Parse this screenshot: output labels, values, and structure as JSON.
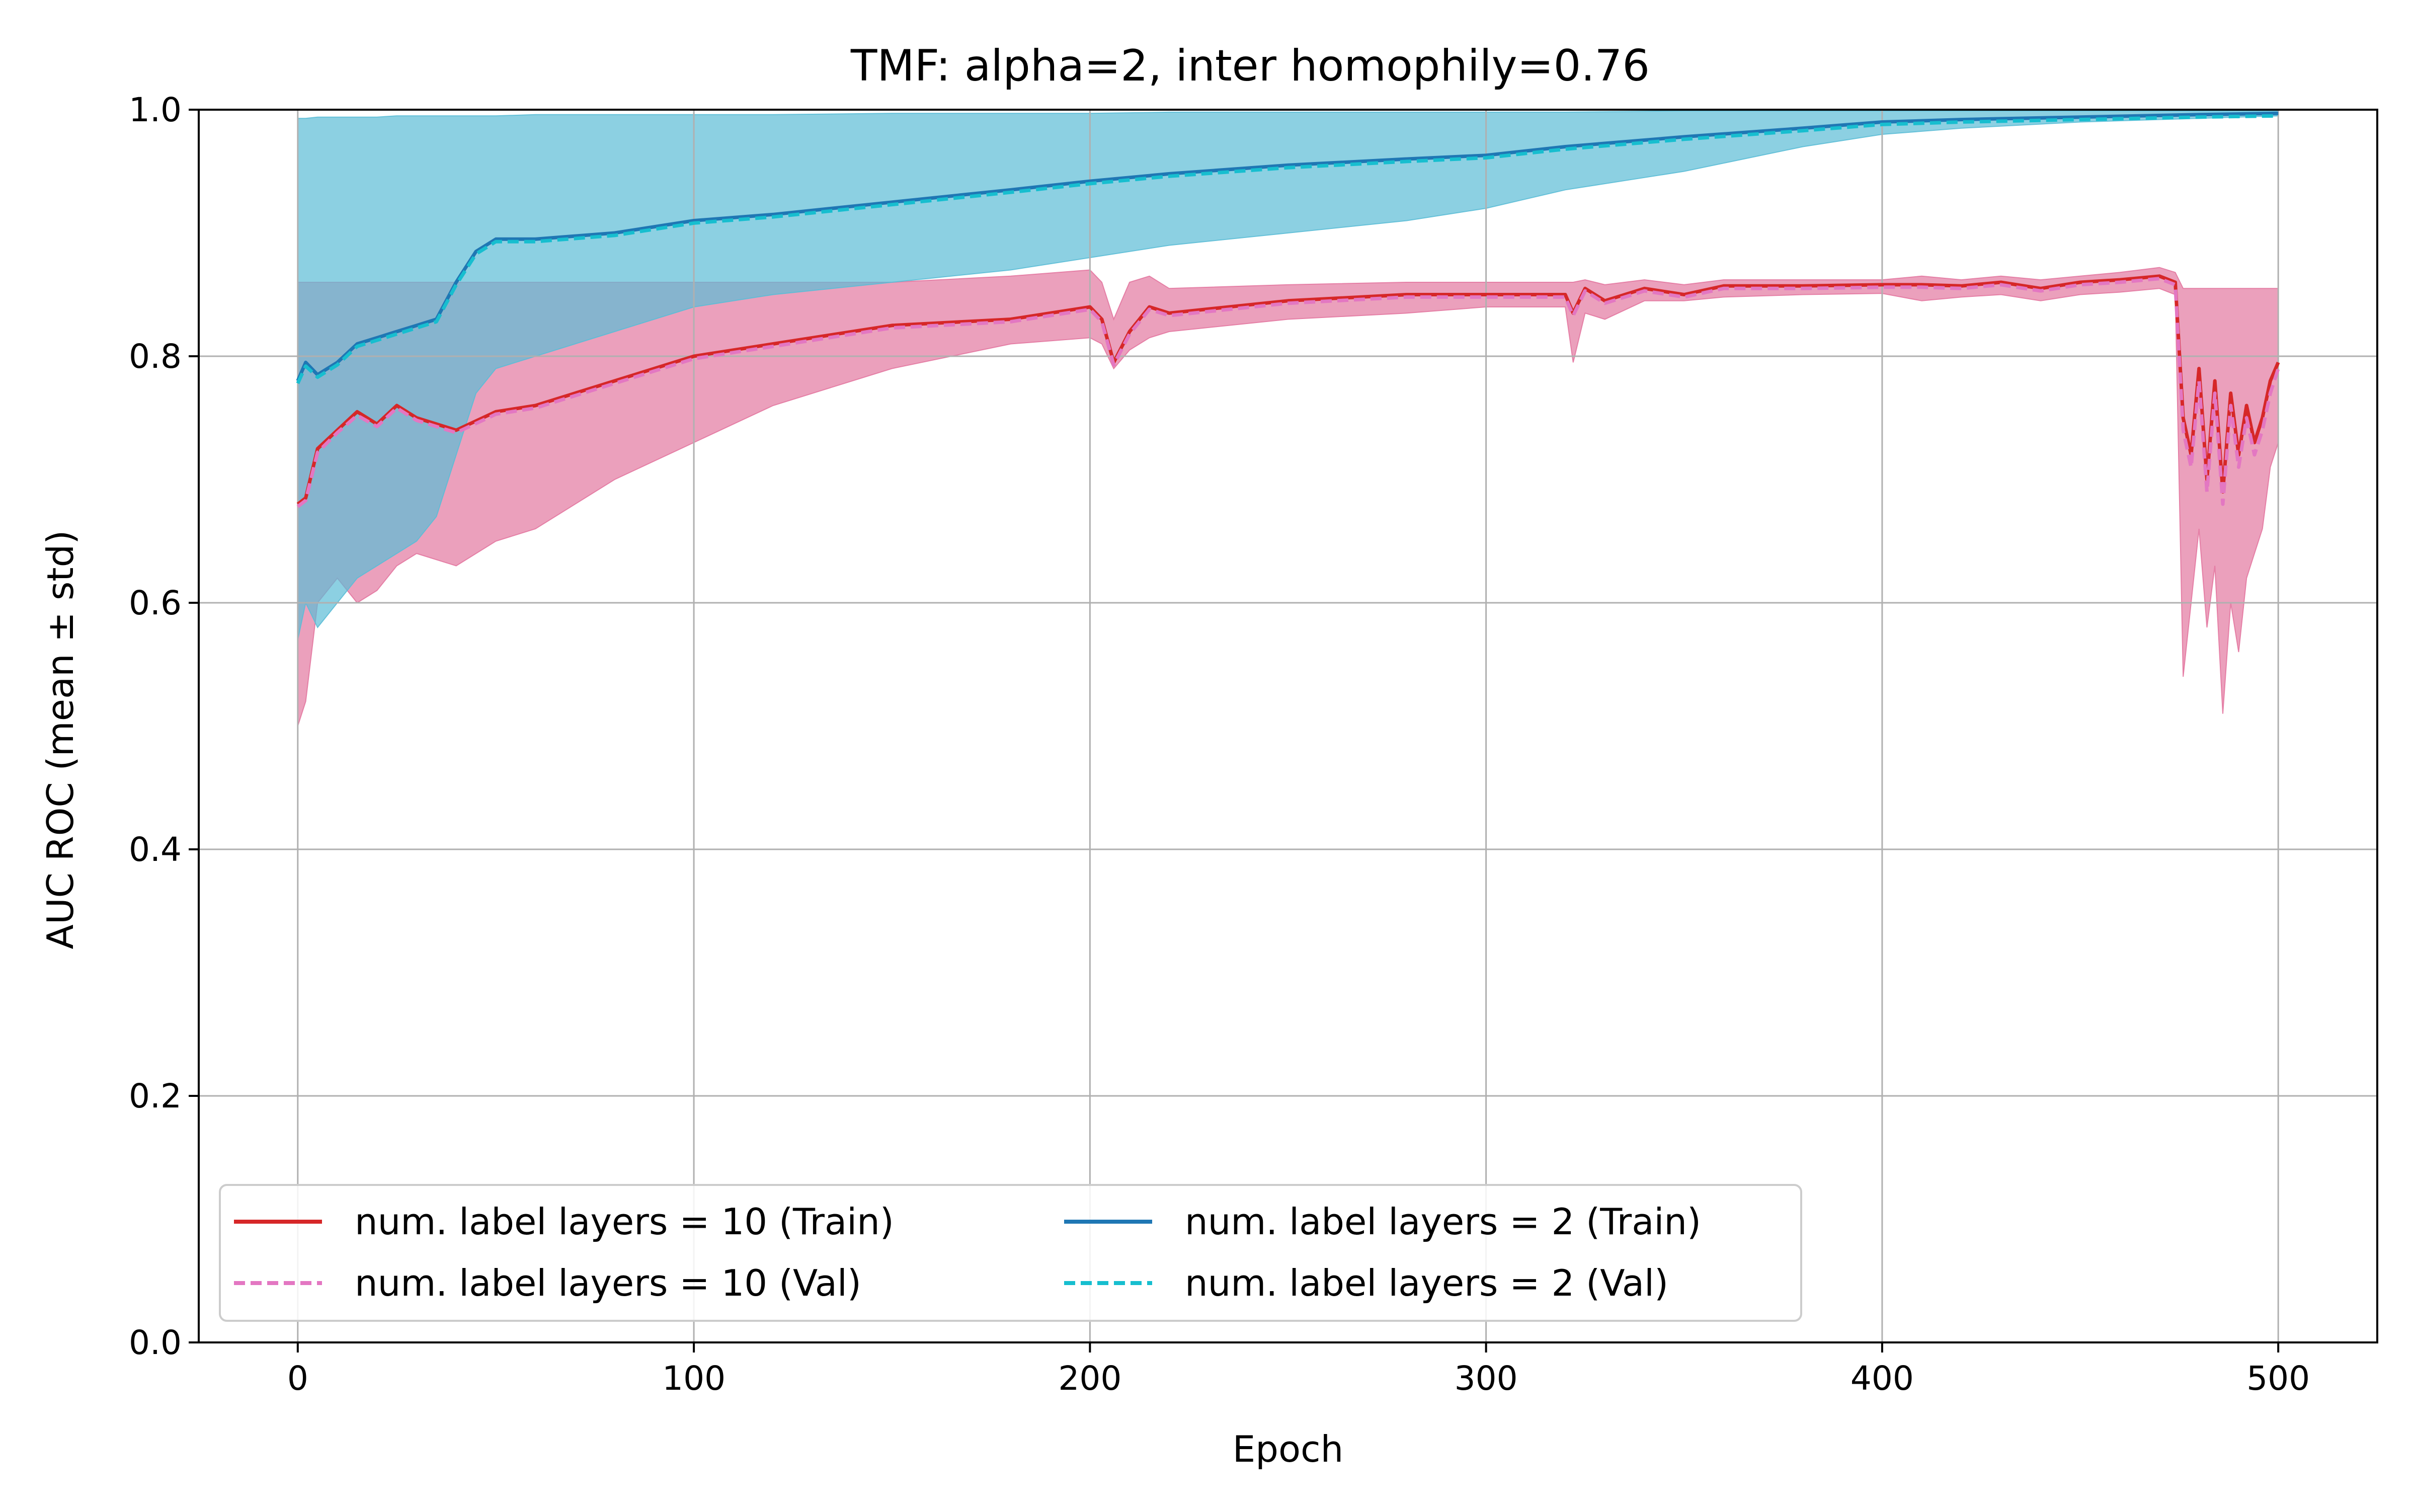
{
  "chart_data": {
    "type": "line",
    "title": "TMF: alpha=2, inter homophily=0.76",
    "xlabel": "Epoch",
    "ylabel": "AUC ROC (mean ± std)",
    "xlim": [
      -25,
      525
    ],
    "ylim": [
      0.0,
      1.0
    ],
    "xticks": [
      0,
      100,
      200,
      300,
      400,
      500
    ],
    "yticks": [
      0.0,
      0.2,
      0.4,
      0.6,
      0.8,
      1.0
    ],
    "xtick_labels": [
      "0",
      "100",
      "200",
      "300",
      "400",
      "500"
    ],
    "ytick_labels": [
      "0.0",
      "0.2",
      "0.4",
      "0.6",
      "0.8",
      "1.0"
    ],
    "grid": true,
    "legend_position": "lower-left",
    "legend_columns": 2,
    "series": [
      {
        "name": "num. label layers = 10 (Train)",
        "color": "#d62728",
        "linestyle": "solid",
        "band_color": "#e377a0",
        "x": [
          0,
          2,
          5,
          10,
          15,
          20,
          25,
          30,
          40,
          50,
          60,
          80,
          100,
          120,
          150,
          180,
          200,
          203,
          206,
          210,
          215,
          220,
          250,
          280,
          300,
          320,
          322,
          325,
          330,
          340,
          350,
          360,
          380,
          400,
          410,
          420,
          430,
          440,
          450,
          460,
          470,
          474,
          476,
          478,
          480,
          482,
          484,
          486,
          488,
          490,
          492,
          494,
          496,
          498,
          500
        ],
        "values": [
          0.68,
          0.685,
          0.725,
          0.74,
          0.755,
          0.745,
          0.76,
          0.75,
          0.74,
          0.755,
          0.76,
          0.78,
          0.8,
          0.81,
          0.825,
          0.83,
          0.84,
          0.83,
          0.795,
          0.82,
          0.84,
          0.835,
          0.845,
          0.85,
          0.85,
          0.85,
          0.835,
          0.855,
          0.845,
          0.855,
          0.85,
          0.857,
          0.857,
          0.858,
          0.858,
          0.857,
          0.86,
          0.855,
          0.86,
          0.862,
          0.865,
          0.86,
          0.75,
          0.72,
          0.79,
          0.7,
          0.78,
          0.69,
          0.77,
          0.72,
          0.76,
          0.73,
          0.75,
          0.78,
          0.795
        ],
        "lower": [
          0.5,
          0.52,
          0.6,
          0.62,
          0.6,
          0.61,
          0.63,
          0.64,
          0.63,
          0.65,
          0.66,
          0.7,
          0.73,
          0.76,
          0.79,
          0.81,
          0.815,
          0.81,
          0.79,
          0.805,
          0.815,
          0.82,
          0.83,
          0.835,
          0.84,
          0.84,
          0.795,
          0.835,
          0.83,
          0.845,
          0.845,
          0.848,
          0.85,
          0.851,
          0.845,
          0.848,
          0.85,
          0.845,
          0.85,
          0.852,
          0.855,
          0.85,
          0.54,
          0.6,
          0.66,
          0.58,
          0.63,
          0.51,
          0.6,
          0.56,
          0.62,
          0.64,
          0.66,
          0.71,
          0.73
        ],
        "upper": [
          0.86,
          0.86,
          0.86,
          0.86,
          0.86,
          0.86,
          0.86,
          0.86,
          0.86,
          0.86,
          0.86,
          0.86,
          0.86,
          0.86,
          0.86,
          0.865,
          0.87,
          0.86,
          0.83,
          0.86,
          0.865,
          0.855,
          0.858,
          0.86,
          0.86,
          0.86,
          0.86,
          0.862,
          0.858,
          0.862,
          0.858,
          0.862,
          0.862,
          0.862,
          0.865,
          0.862,
          0.865,
          0.862,
          0.865,
          0.868,
          0.872,
          0.868,
          0.855,
          0.855,
          0.855,
          0.855,
          0.855,
          0.855,
          0.855,
          0.855,
          0.855,
          0.855,
          0.855,
          0.855,
          0.855
        ]
      },
      {
        "name": "num. label layers = 10 (Val)",
        "color": "#e377c2",
        "linestyle": "dashed",
        "x": [
          0,
          2,
          5,
          10,
          15,
          20,
          25,
          30,
          40,
          50,
          60,
          80,
          100,
          120,
          150,
          180,
          200,
          203,
          206,
          210,
          215,
          220,
          250,
          280,
          300,
          320,
          322,
          325,
          330,
          340,
          350,
          360,
          380,
          400,
          410,
          420,
          430,
          440,
          450,
          460,
          470,
          474,
          476,
          478,
          480,
          482,
          484,
          486,
          488,
          490,
          492,
          494,
          496,
          498,
          500
        ],
        "values": [
          0.678,
          0.683,
          0.722,
          0.738,
          0.752,
          0.743,
          0.758,
          0.748,
          0.738,
          0.753,
          0.758,
          0.778,
          0.798,
          0.808,
          0.823,
          0.828,
          0.838,
          0.828,
          0.793,
          0.818,
          0.838,
          0.833,
          0.843,
          0.848,
          0.848,
          0.848,
          0.833,
          0.853,
          0.843,
          0.853,
          0.848,
          0.855,
          0.855,
          0.856,
          0.856,
          0.855,
          0.858,
          0.853,
          0.858,
          0.86,
          0.863,
          0.858,
          0.74,
          0.71,
          0.78,
          0.69,
          0.77,
          0.68,
          0.76,
          0.71,
          0.75,
          0.72,
          0.74,
          0.77,
          0.79
        ]
      },
      {
        "name": "num. label layers = 2 (Train)",
        "color": "#1f77b4",
        "linestyle": "solid",
        "band_color": "#5bbcd6",
        "x": [
          0,
          2,
          5,
          10,
          15,
          20,
          25,
          30,
          35,
          40,
          45,
          50,
          60,
          80,
          100,
          120,
          150,
          180,
          200,
          220,
          250,
          280,
          300,
          320,
          350,
          380,
          400,
          420,
          450,
          480,
          500
        ],
        "values": [
          0.78,
          0.795,
          0.785,
          0.795,
          0.81,
          0.815,
          0.82,
          0.825,
          0.83,
          0.86,
          0.885,
          0.895,
          0.895,
          0.9,
          0.91,
          0.915,
          0.925,
          0.935,
          0.942,
          0.948,
          0.955,
          0.96,
          0.963,
          0.97,
          0.978,
          0.985,
          0.99,
          0.992,
          0.994,
          0.996,
          0.997
        ],
        "lower": [
          0.57,
          0.6,
          0.58,
          0.6,
          0.62,
          0.63,
          0.64,
          0.65,
          0.67,
          0.72,
          0.77,
          0.79,
          0.8,
          0.82,
          0.84,
          0.85,
          0.86,
          0.87,
          0.88,
          0.89,
          0.9,
          0.91,
          0.92,
          0.935,
          0.95,
          0.97,
          0.98,
          0.985,
          0.99,
          0.993,
          0.995
        ],
        "upper": [
          0.993,
          0.993,
          0.994,
          0.994,
          0.994,
          0.994,
          0.995,
          0.995,
          0.995,
          0.995,
          0.995,
          0.995,
          0.996,
          0.996,
          0.996,
          0.996,
          0.997,
          0.997,
          0.997,
          0.998,
          0.998,
          0.998,
          0.998,
          0.998,
          0.999,
          0.999,
          0.999,
          0.999,
          0.999,
          0.999,
          0.999
        ]
      },
      {
        "name": "num. label layers = 2 (Val)",
        "color": "#17becf",
        "linestyle": "dashed",
        "x": [
          0,
          2,
          5,
          10,
          15,
          20,
          25,
          30,
          35,
          40,
          45,
          50,
          60,
          80,
          100,
          120,
          150,
          180,
          200,
          220,
          250,
          280,
          300,
          320,
          350,
          380,
          400,
          420,
          450,
          480,
          500
        ],
        "values": [
          0.778,
          0.792,
          0.783,
          0.793,
          0.808,
          0.813,
          0.818,
          0.823,
          0.828,
          0.858,
          0.883,
          0.893,
          0.893,
          0.898,
          0.908,
          0.913,
          0.923,
          0.933,
          0.94,
          0.946,
          0.953,
          0.958,
          0.961,
          0.968,
          0.976,
          0.983,
          0.988,
          0.99,
          0.992,
          0.994,
          0.995
        ]
      }
    ]
  }
}
